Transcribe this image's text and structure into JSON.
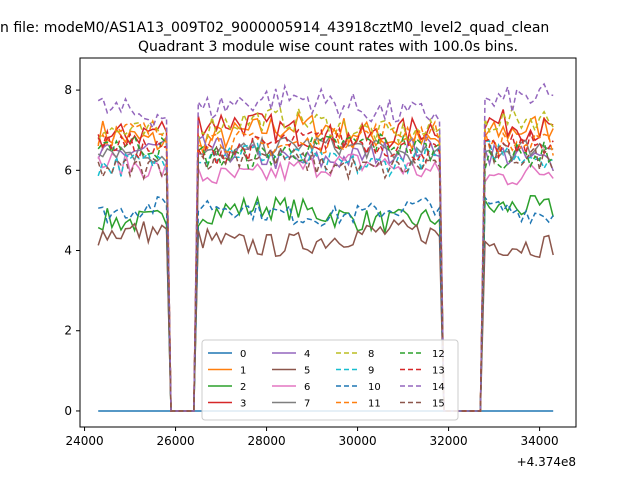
{
  "figure": {
    "suptitle": "n file: modeM0/AS1A13_009T02_9000005914_43918cztM0_level2_quad_clean",
    "title": "Quadrant 3 module wise count rates with 100.0s bins."
  },
  "chart_data": {
    "type": "line",
    "title": "Quadrant 3 module wise count rates with 100.0s bins.",
    "xlabel": "",
    "ylabel": "",
    "x_offset_label": "+4.374e8",
    "xlim": [
      23900,
      34800
    ],
    "ylim": [
      -0.4,
      8.8
    ],
    "x_ticks": [
      24000,
      26000,
      28000,
      30000,
      32000,
      34000
    ],
    "x_tick_labels": [
      "24000",
      "26000",
      "28000",
      "30000",
      "32000",
      "34000"
    ],
    "y_ticks": [
      0,
      2,
      4,
      6,
      8
    ],
    "y_tick_labels": [
      "0",
      "2",
      "4",
      "6",
      "8"
    ],
    "grid": false,
    "legend_position": "lower-center",
    "legend_ncol": 4,
    "series": [
      {
        "name": "0",
        "color": "#1f77b4",
        "dash": "solid",
        "base": 0,
        "amp": 0
      },
      {
        "name": "1",
        "color": "#ff7f0e",
        "dash": "solid",
        "base": 6.9,
        "amp": 0.35
      },
      {
        "name": "2",
        "color": "#2ca02c",
        "dash": "solid",
        "base": 4.9,
        "amp": 0.3
      },
      {
        "name": "3",
        "color": "#d62728",
        "dash": "solid",
        "base": 7.0,
        "amp": 0.35
      },
      {
        "name": "4",
        "color": "#9467bd",
        "dash": "solid",
        "base": 6.4,
        "amp": 0.3
      },
      {
        "name": "5",
        "color": "#8c564b",
        "dash": "solid",
        "base": 4.3,
        "amp": 0.3
      },
      {
        "name": "6",
        "color": "#e377c2",
        "dash": "solid",
        "base": 6.0,
        "amp": 0.3
      },
      {
        "name": "7",
        "color": "#7f7f7f",
        "dash": "solid",
        "base": 6.5,
        "amp": 0.25
      },
      {
        "name": "8",
        "color": "#bcbd22",
        "dash": "dashed",
        "base": 7.1,
        "amp": 0.3
      },
      {
        "name": "9",
        "color": "#17becf",
        "dash": "dashed",
        "base": 6.3,
        "amp": 0.3
      },
      {
        "name": "10",
        "color": "#1f77b4",
        "dash": "dashed",
        "base": 5.0,
        "amp": 0.25
      },
      {
        "name": "11",
        "color": "#ff7f0e",
        "dash": "dashed",
        "base": 6.8,
        "amp": 0.3
      },
      {
        "name": "12",
        "color": "#2ca02c",
        "dash": "dashed",
        "base": 6.5,
        "amp": 0.3
      },
      {
        "name": "13",
        "color": "#d62728",
        "dash": "dashed",
        "base": 6.6,
        "amp": 0.3
      },
      {
        "name": "14",
        "color": "#9467bd",
        "dash": "dashed",
        "base": 7.6,
        "amp": 0.35
      },
      {
        "name": "15",
        "color": "#8c564b",
        "dash": "dashed",
        "base": 6.2,
        "amp": 0.3
      }
    ],
    "segments": [
      {
        "x_start": 24300,
        "x_end": 25800
      },
      {
        "x_start": 26500,
        "x_end": 31800
      },
      {
        "x_start": 32800,
        "x_end": 34300
      }
    ],
    "gap_value": 0,
    "x_step": 100
  }
}
